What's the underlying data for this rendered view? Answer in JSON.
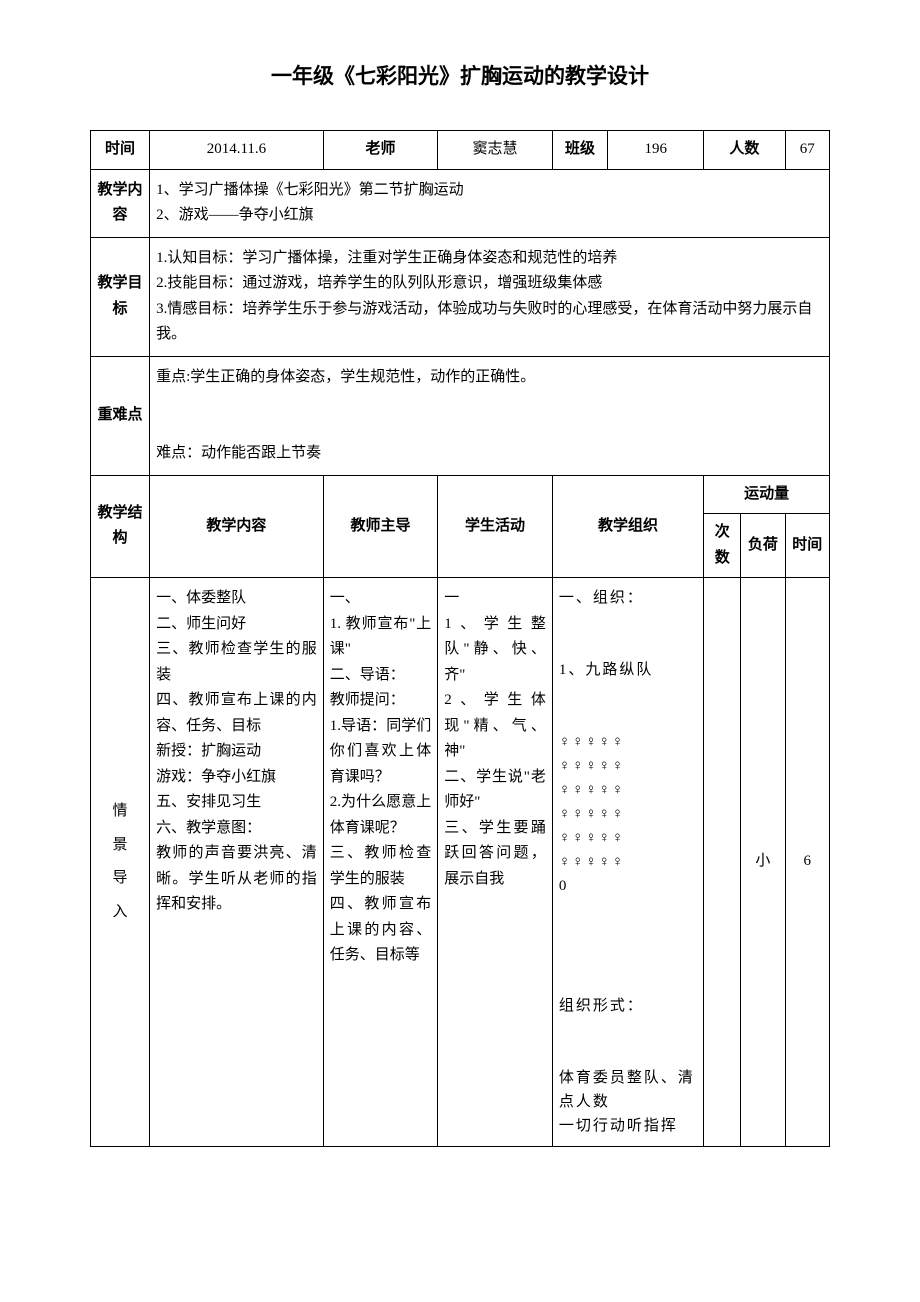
{
  "title": "一年级《七彩阳光》扩胸运动的教学设计",
  "header": {
    "time_label": "时间",
    "time_value": "2014.11.6",
    "teacher_label": "老师",
    "teacher_value": "窦志慧",
    "class_label": "班级",
    "class_value": "196",
    "count_label": "人数",
    "count_value": "67"
  },
  "content_label": "教学内容",
  "content_value": "1、学习广播体操《七彩阳光》第二节扩胸运动\n2、游戏——争夺小红旗",
  "goals_label": "教学目标",
  "goals_value": "1.认知目标：学习广播体操，注重对学生正确身体姿态和规范性的培养\n2.技能目标：通过游戏，培养学生的队列队形意识，增强班级集体感\n3.情感目标：培养学生乐于参与游戏活动，体验成功与失败时的心理感受，在体育活动中努力展示自我。",
  "keypoints_label": "重难点",
  "keypoints_value": "重点:学生正确的身体姿态，学生规范性，动作的正确性。\n\n难点：动作能否跟上节奏",
  "cols": {
    "structure": "教学结构",
    "content": "教学内容",
    "teacher": "教师主导",
    "student": "学生活动",
    "org": "教学组织",
    "load": "运动量",
    "times": "次数",
    "intensity": "负荷",
    "duration": "时间"
  },
  "section": {
    "structure": "情\n景\n导\n入",
    "content": "一、体委整队\n二、师生问好\n三、教师检查学生的服装\n四、教师宣布上课的内容、任务、目标\n新授：扩胸运动\n游戏：争夺小红旗\n五、安排见习生\n六、教学意图：\n教师的声音要洪亮、清晰。学生听从老师的指挥和安排。",
    "teacher": "一、\n1. 教师宣布\"上课\"\n二、导语：\n教师提问：\n1.导语：同学们你们喜欢上体育课吗？\n2.为什么愿意上体育课呢？\n三、教师检查学生的服装\n四、教师宣布上课的内容、任务、目标等",
    "student": "一\n1、学生整队\"静、快、齐\"\n2、学生体现\"精、气、神\"\n二、学生说\"老师好\"\n三、学生要踊跃回答问题，展示自我",
    "org": "一、组织：\n\n1、九路纵队\n\n♀♀♀♀♀\n♀♀♀♀♀\n♀♀♀♀♀\n♀♀♀♀♀\n♀♀♀♀♀\n♀♀♀♀♀\n0\n\n\n组织形式：\n\n体育委员整队、清点人数\n一切行动听指挥",
    "times": "",
    "intensity": "小",
    "duration": "6"
  }
}
